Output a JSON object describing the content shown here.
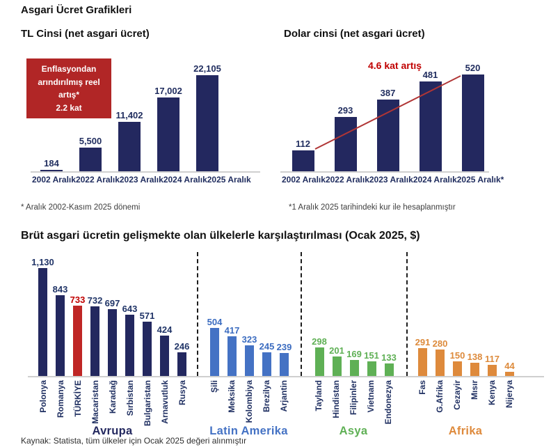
{
  "page": {
    "title": "Asgari Ücret Grafikleri"
  },
  "colors": {
    "navy": "#23285f",
    "label_navy": "#1f2c5e",
    "red_box_bg": "#b12626",
    "accent_red": "#c00000",
    "turkiye_bar_red": "#bf2625",
    "trend_red": "#b03535",
    "latin_blue": "#4472c4",
    "asia_green": "#5fb055",
    "africa_orange": "#de8a3c",
    "axis_gray": "#cfcfcf"
  },
  "chart_data": [
    {
      "type": "bar",
      "title": "TL Cinsi (net asgari ücret)",
      "categories": [
        "2002 Aralık",
        "2022 Aralık",
        "2023 Aralık",
        "2024 Aralık",
        "2025 Aralık"
      ],
      "values": [
        184,
        5500,
        11402,
        17002,
        22105
      ],
      "value_labels": [
        "184",
        "5,500",
        "11,402",
        "17,002",
        "22,105"
      ],
      "ylim": [
        0,
        22105
      ],
      "bar_color": "#23285f",
      "grid": false,
      "annotation_box": {
        "lines": [
          "Enflasyondan",
          "arındırılmış reel artış*",
          "2.2 kat"
        ],
        "bg": "#b12626",
        "text_color": "#ffffff"
      },
      "footnote": "* Aralık 2002-Kasım 2025 dönemi"
    },
    {
      "type": "bar",
      "title": "Dolar cinsi (net asgari ücret)",
      "categories": [
        "2002 Aralık",
        "2022 Aralık",
        "2023 Aralık",
        "2024 Aralık",
        "2025 Aralık*"
      ],
      "values": [
        112,
        293,
        387,
        481,
        520
      ],
      "value_labels": [
        "112",
        "293",
        "387",
        "481",
        "520"
      ],
      "ylim": [
        0,
        520
      ],
      "bar_color": "#23285f",
      "grid": false,
      "annotation": {
        "text": "4.6 kat artış",
        "color": "#c00000"
      },
      "trendline": {
        "from_value": 112,
        "to_value": 520,
        "color": "#b03535"
      },
      "footnote": "*1 Aralık 2025 tarihindeki kur ile hesaplanmıştır"
    },
    {
      "type": "bar",
      "title": "Brüt asgari ücretin gelişmekte olan ülkelerle karşılaştırılması (Ocak 2025, $)",
      "ylim": [
        0,
        1130
      ],
      "grid": false,
      "groups": [
        {
          "name": "Avrupa",
          "color": "#23285f",
          "label_color": "#203467",
          "items": [
            {
              "label": "Polonya",
              "value": 1130,
              "display": "1,130"
            },
            {
              "label": "Romanya",
              "value": 843,
              "display": "843"
            },
            {
              "label": "TÜRKİYE",
              "value": 733,
              "display": "733",
              "color": "#bf2625",
              "label_color": "#c00000"
            },
            {
              "label": "Macaristan",
              "value": 732,
              "display": "732"
            },
            {
              "label": "Karadağ",
              "value": 697,
              "display": "697"
            },
            {
              "label": "Sırbistan",
              "value": 643,
              "display": "643"
            },
            {
              "label": "Bulgaristan",
              "value": 571,
              "display": "571"
            },
            {
              "label": "Arnavutluk",
              "value": 424,
              "display": "424"
            },
            {
              "label": "Rusya",
              "value": 246,
              "display": "246"
            }
          ]
        },
        {
          "name": "Latin Amerika",
          "color": "#4472c4",
          "label_color": "#3b6cc0",
          "items": [
            {
              "label": "Şili",
              "value": 504,
              "display": "504"
            },
            {
              "label": "Meksika",
              "value": 417,
              "display": "417"
            },
            {
              "label": "Kolombiya",
              "value": 323,
              "display": "323"
            },
            {
              "label": "Brezilya",
              "value": 245,
              "display": "245"
            },
            {
              "label": "Arjantin",
              "value": 239,
              "display": "239"
            }
          ]
        },
        {
          "name": "Asya",
          "color": "#5fb055",
          "label_color": "#5fb055",
          "items": [
            {
              "label": "Tayland",
              "value": 298,
              "display": "298"
            },
            {
              "label": "Hindistan",
              "value": 201,
              "display": "201"
            },
            {
              "label": "Filipinler",
              "value": 169,
              "display": "169"
            },
            {
              "label": "Vietnam",
              "value": 151,
              "display": "151"
            },
            {
              "label": "Endonezya",
              "value": 133,
              "display": "133"
            }
          ]
        },
        {
          "name": "Afrika",
          "color": "#de8a3c",
          "label_color": "#dd8a3b",
          "items": [
            {
              "label": "Fas",
              "value": 291,
              "display": "291"
            },
            {
              "label": "G.Afrika",
              "value": 280,
              "display": "280"
            },
            {
              "label": "Cezayir",
              "value": 150,
              "display": "150"
            },
            {
              "label": "Mısır",
              "value": 138,
              "display": "138"
            },
            {
              "label": "Kenya",
              "value": 117,
              "display": "117"
            },
            {
              "label": "Nijerya",
              "value": 44,
              "display": "44"
            }
          ]
        }
      ],
      "source": "Kaynak: Statista, tüm ülkeler için Ocak 2025 değeri alınmıştır"
    }
  ]
}
